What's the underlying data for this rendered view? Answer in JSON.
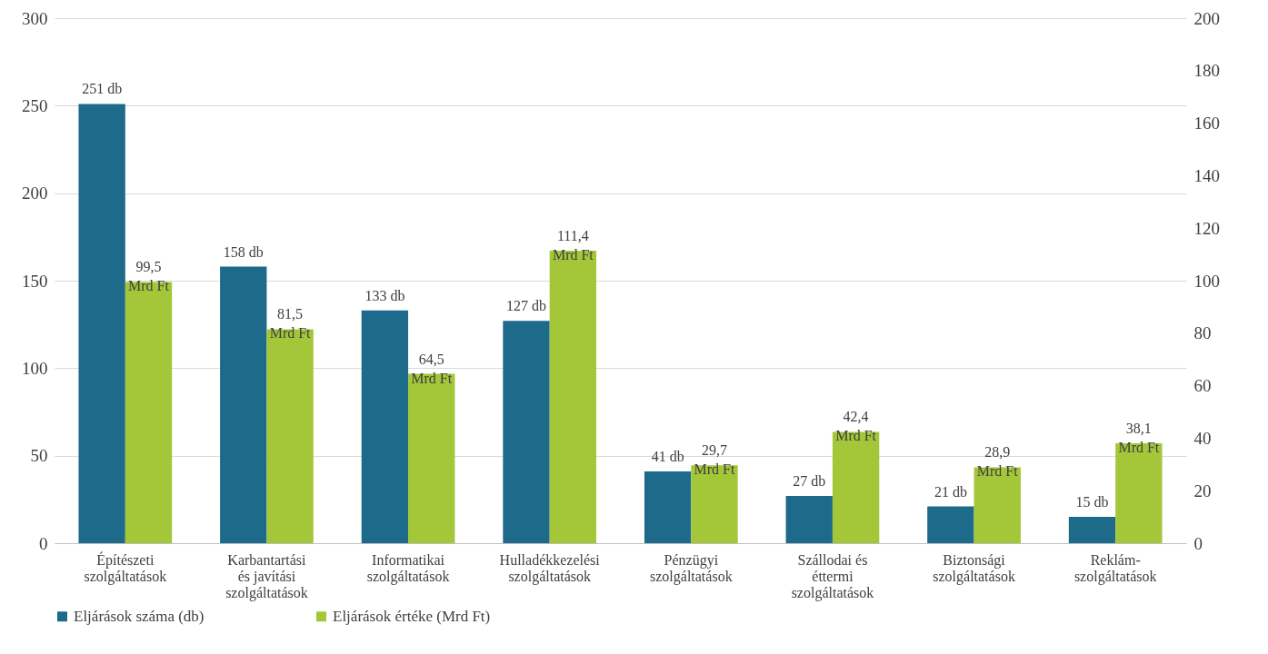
{
  "chart_data": {
    "type": "bar",
    "categories": [
      "Építészeti szolgáltatások",
      "Karbantartási és javítási szolgáltatások",
      "Informatikai szolgáltatások",
      "Hulladékkezelési szolgáltatások",
      "Pénzügyi szolgáltatások",
      "Szállodai és éttermi szolgáltatások",
      "Biztonsági szolgáltatások",
      "Reklám-szolgáltatások"
    ],
    "series": [
      {
        "name": "Eljárások száma (db)",
        "color": "#1d6a8a",
        "values": [
          251,
          158,
          133,
          127,
          41,
          27,
          21,
          15
        ],
        "value_labels": [
          "251 db",
          "158 db",
          "133 db",
          "127 db",
          "41 db",
          "27 db",
          "21 db",
          "15 db"
        ]
      },
      {
        "name": "Eljárások értéke (Mrd Ft)",
        "color": "#a4c639",
        "axis": "y2",
        "values": [
          99.5,
          81.5,
          64.5,
          111.4,
          29.7,
          42.4,
          28.9,
          38.1
        ],
        "value_labels": [
          "99,5\nMrd Ft",
          "81,5\nMrd Ft",
          "64,5\nMrd Ft",
          "111,4\nMrd Ft",
          "29,7\nMrd Ft",
          "42,4\nMrd Ft",
          "28,9\nMrd Ft",
          "38,1\nMrd Ft"
        ]
      }
    ],
    "ylim": [
      0,
      300
    ],
    "yticks": [
      0,
      50,
      100,
      150,
      200,
      250,
      300
    ],
    "y2lim": [
      0,
      200
    ],
    "y2ticks": [
      0,
      20,
      40,
      60,
      80,
      100,
      120,
      140,
      160,
      180,
      200
    ],
    "grid": "y",
    "legend": "bottom"
  }
}
